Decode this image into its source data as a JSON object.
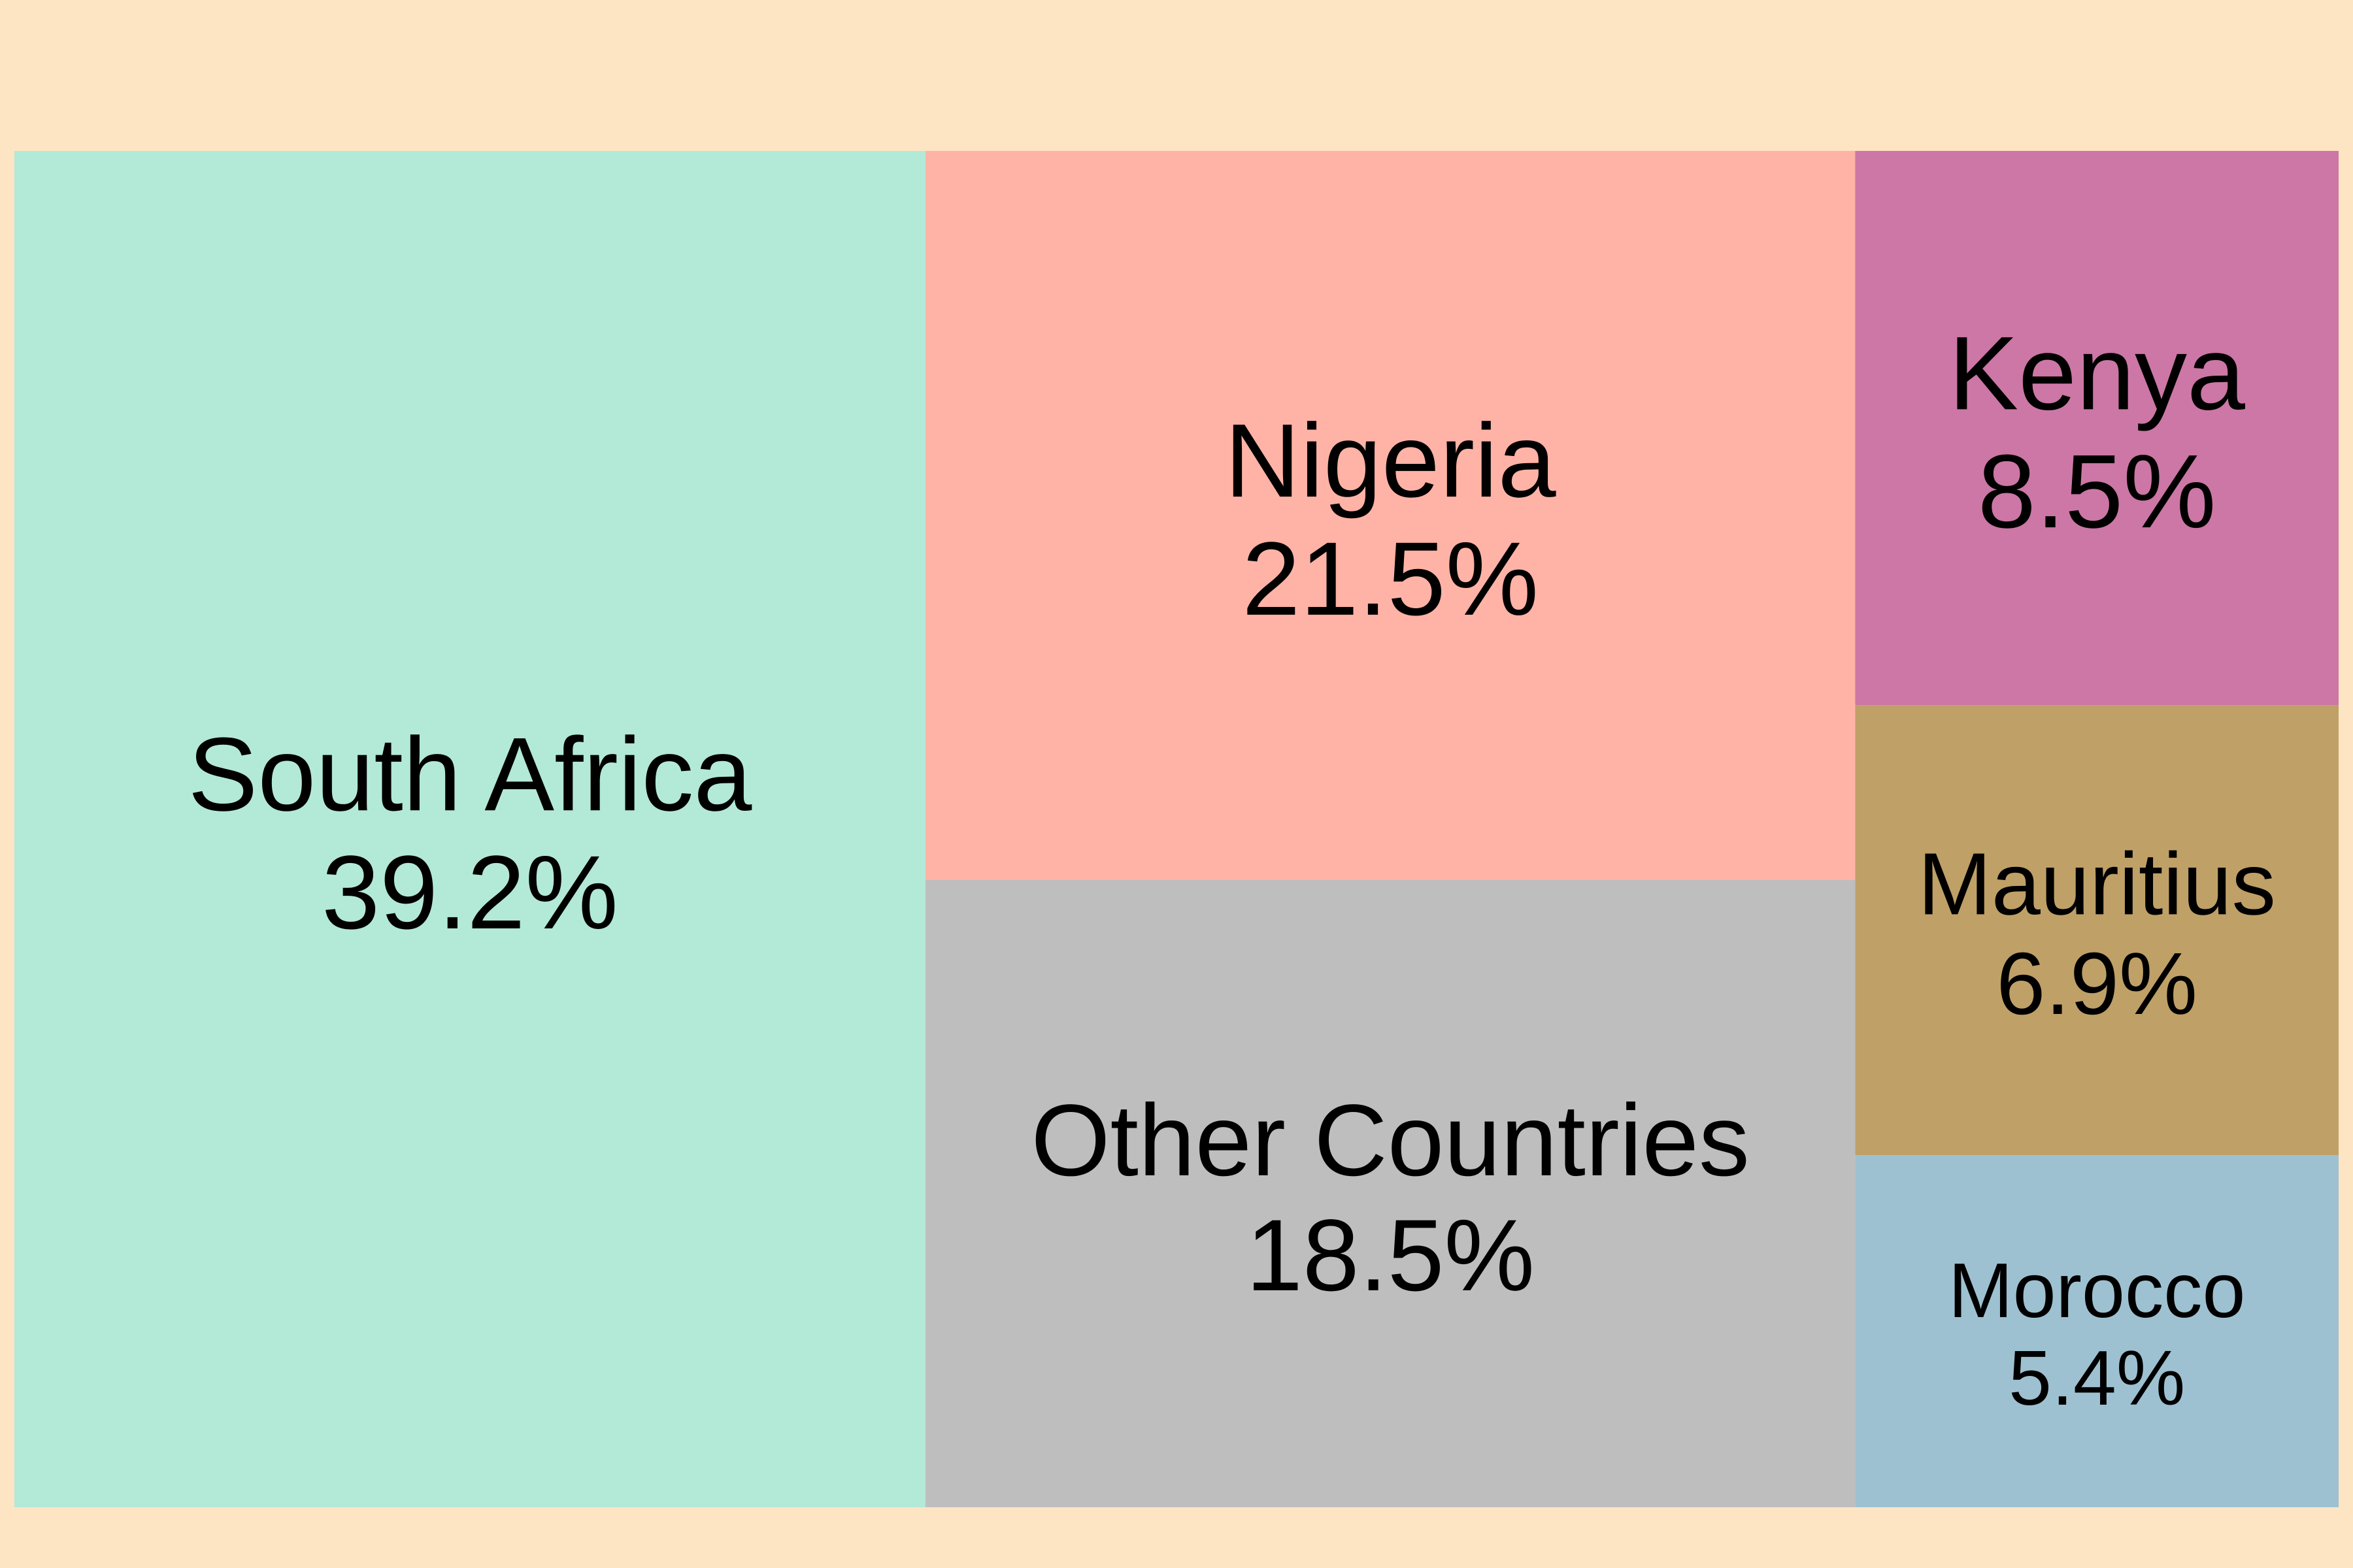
{
  "chart_data": {
    "type": "treemap",
    "title": "",
    "background_color": "#fde4c3",
    "label_color": "#000000",
    "tiles": [
      {
        "label": "South Africa",
        "value": 39.2,
        "value_label": "39.2%",
        "color": "#b3e9d7"
      },
      {
        "label": "Nigeria",
        "value": 21.5,
        "value_label": "21.5%",
        "color": "#ffb3a6"
      },
      {
        "label": "Other Countries",
        "value": 18.5,
        "value_label": "18.5%",
        "color": "#bebebe"
      },
      {
        "label": "Kenya",
        "value": 8.5,
        "value_label": "8.5%",
        "color": "#cc77a5"
      },
      {
        "label": "Mauritius",
        "value": 6.9,
        "value_label": "6.9%",
        "color": "#bfa067"
      },
      {
        "label": "Morocco",
        "value": 5.4,
        "value_label": "5.4%",
        "color": "#9ec1d1"
      }
    ]
  }
}
